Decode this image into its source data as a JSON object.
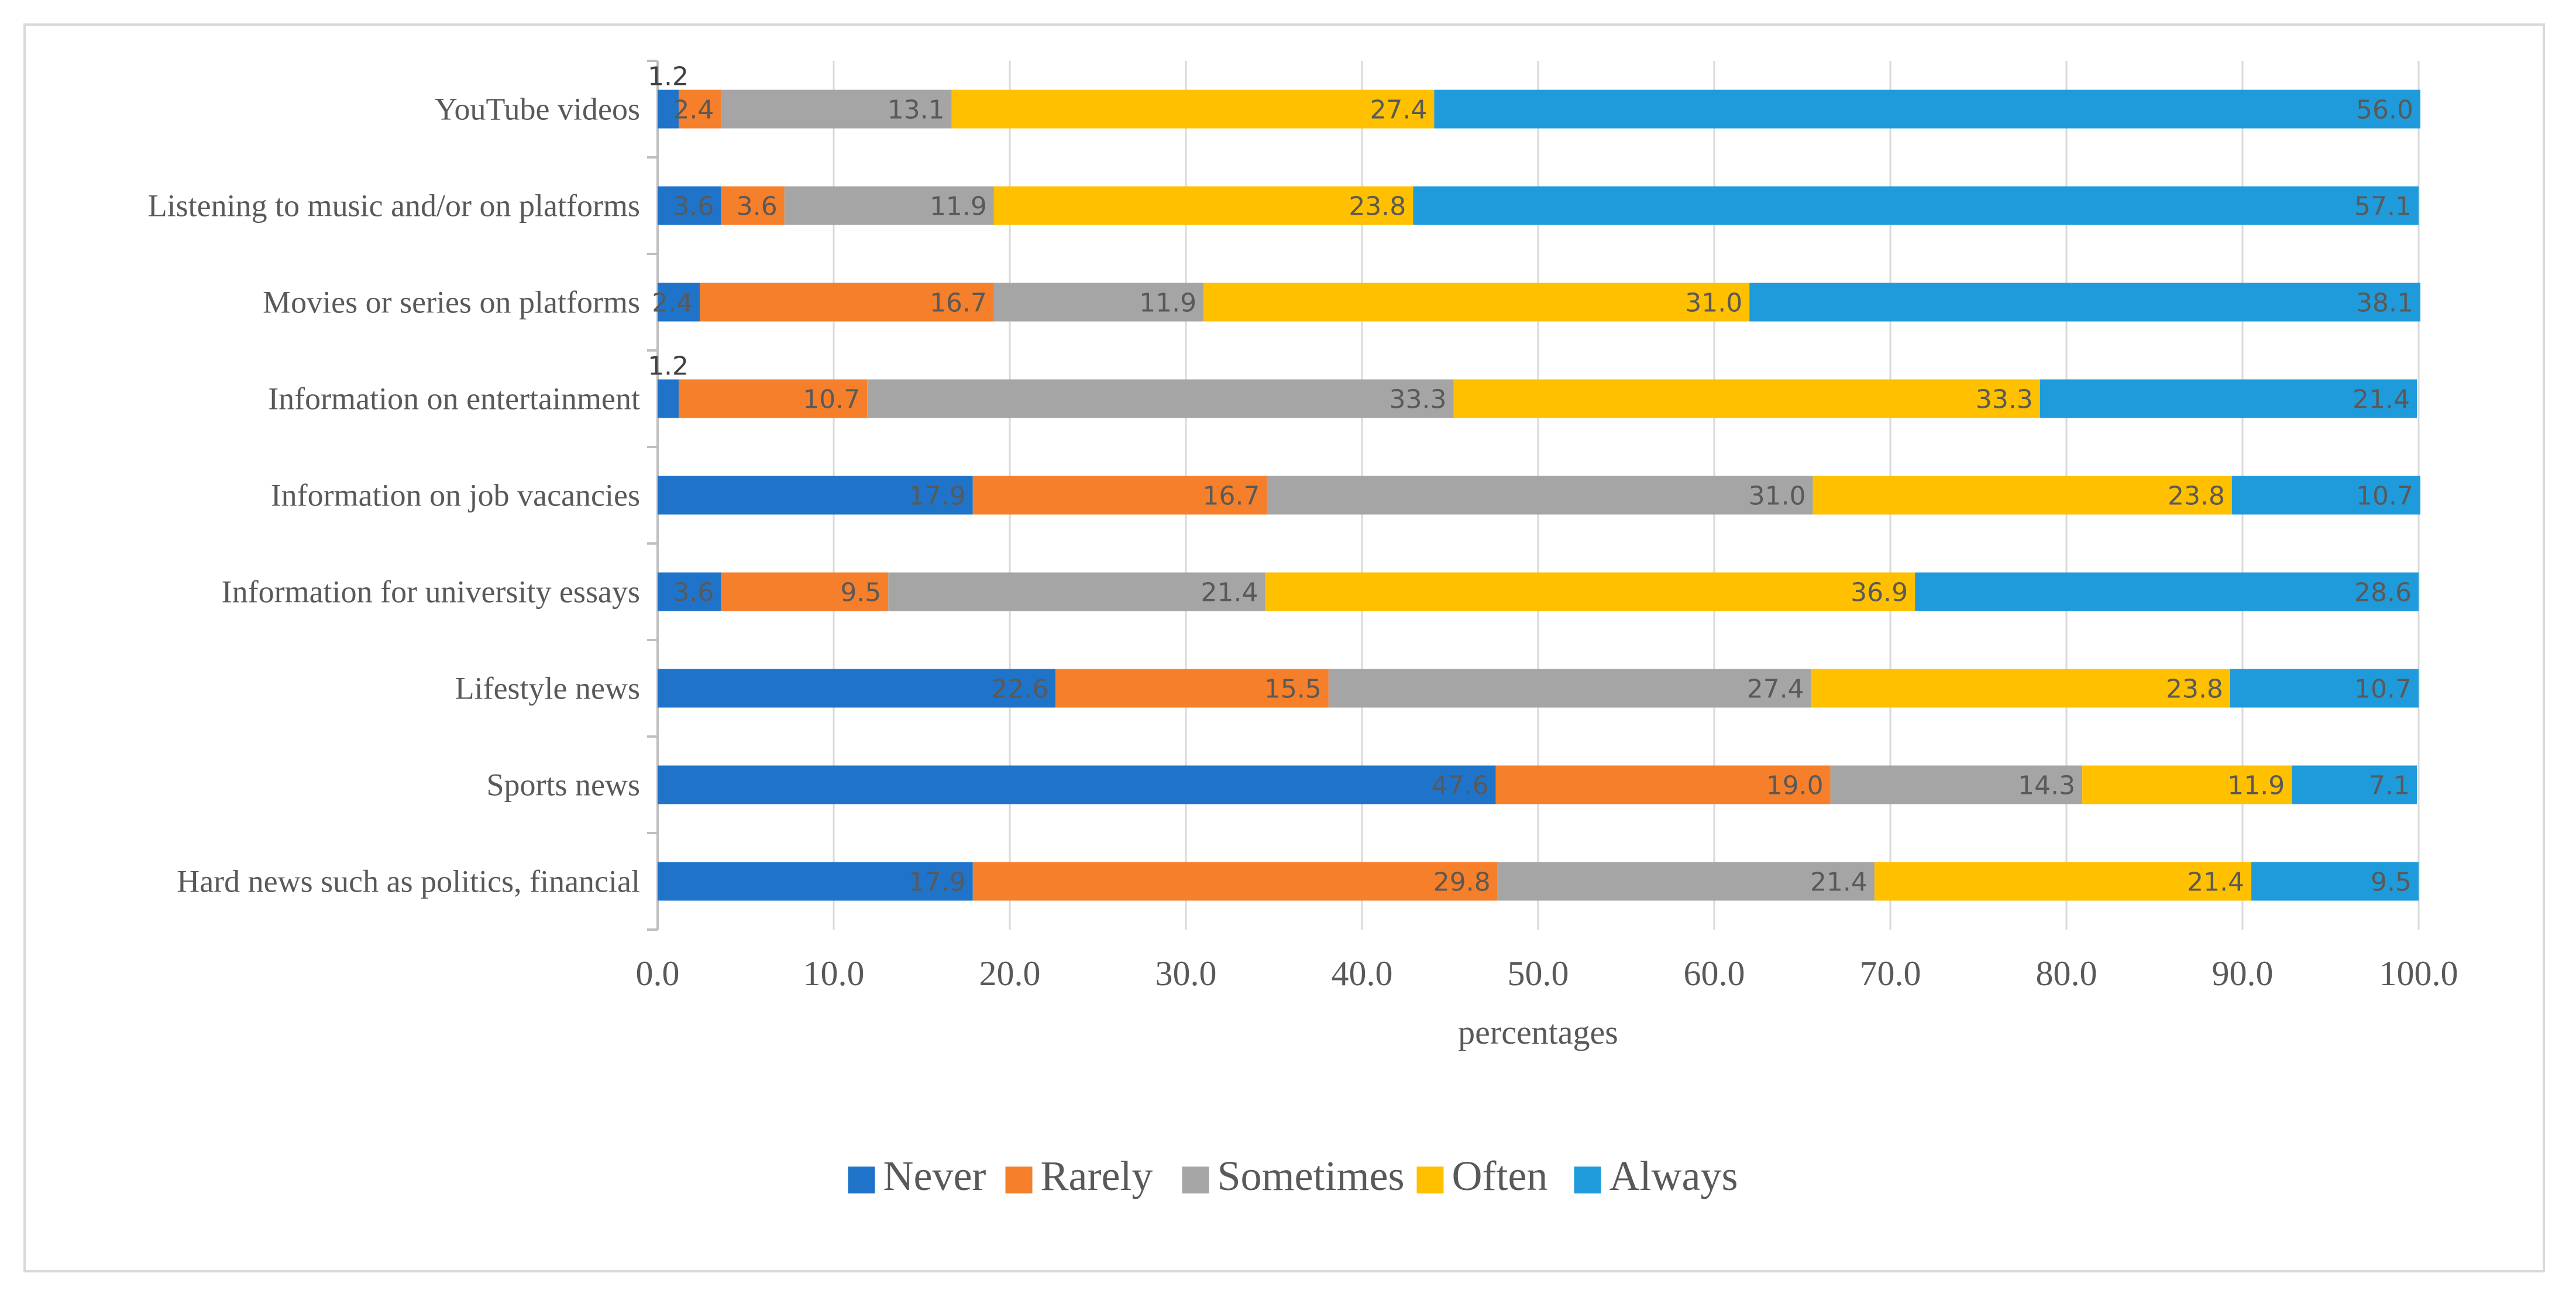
{
  "chart_data": {
    "type": "bar",
    "orientation": "horizontal",
    "stacked": true,
    "categories": [
      "YouTube videos",
      "Listening to music and/or on platforms",
      "Movies or series on platforms",
      "Information on entertainment",
      "Information on job vacancies",
      "Information for university essays",
      "Lifestyle news",
      "Sports news",
      "Hard news such as politics, financial"
    ],
    "series": [
      {
        "name": "Never",
        "color": "#1f74c9",
        "values": [
          1.2,
          3.6,
          2.4,
          1.2,
          17.9,
          3.6,
          22.6,
          47.6,
          17.9
        ]
      },
      {
        "name": "Rarely",
        "color": "#f57f2a",
        "values": [
          2.4,
          3.6,
          16.7,
          10.7,
          16.7,
          9.5,
          15.5,
          19.0,
          29.8
        ]
      },
      {
        "name": "Sometimes",
        "color": "#a5a5a5",
        "values": [
          13.1,
          11.9,
          11.9,
          33.3,
          31.0,
          21.4,
          27.4,
          14.3,
          21.4
        ]
      },
      {
        "name": "Often",
        "color": "#ffc000",
        "values": [
          27.4,
          23.8,
          31.0,
          33.3,
          23.8,
          36.9,
          23.8,
          11.9,
          21.4
        ]
      },
      {
        "name": "Always",
        "color": "#1f9bdb",
        "values": [
          56.0,
          57.1,
          38.1,
          21.4,
          10.7,
          28.6,
          10.7,
          7.1,
          9.5
        ]
      }
    ],
    "x_ticks": [
      "0.0",
      "10.0",
      "20.0",
      "30.0",
      "40.0",
      "50.0",
      "60.0",
      "70.0",
      "80.0",
      "90.0",
      "100.0"
    ],
    "xlim": [
      0,
      100
    ],
    "xlabel": "percentages",
    "ylabel": "",
    "title": "",
    "grid": true,
    "legend_position": "bottom"
  }
}
